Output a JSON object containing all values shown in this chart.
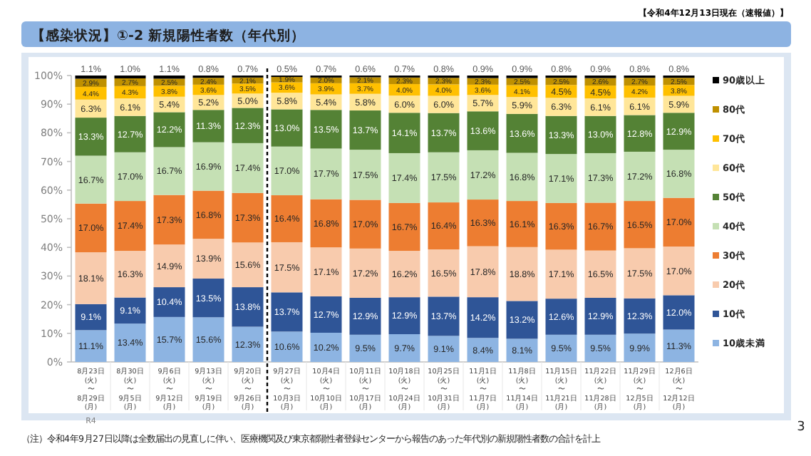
{
  "chart_data": {
    "type": "bar",
    "stacked": true,
    "title": "【感染状況】①-2 新規陽性者数（年代別）",
    "subtitle": "【令和4年12月13日現在（速報値）】",
    "annotations": [
      "（注）令和4年9月27日以降は全数届出の見直しに伴い、医療機関及び東京都陽性者登録センターから報告のあった年代別の新規陽性者数の合計を計上",
      "R4",
      "3"
    ],
    "categories": [
      "8月23日\n(火)\n〜\n8月29日\n(月)",
      "8月30日\n(火)\n〜\n9月5日\n(月)",
      "9月6日\n(火)\n〜\n9月12日\n(月)",
      "9月13日\n(火)\n〜\n9月19日\n(月)",
      "9月20日\n(火)\n〜\n9月26日\n(月)",
      "9月27日\n(火)\n〜\n10月3日\n(月)",
      "10月4日\n(火)\n〜\n10月10日\n(月)",
      "10月11日\n(火)\n〜\n10月17日\n(月)",
      "10月18日\n(火)\n〜\n10月24日\n(月)",
      "10月25日\n(火)\n〜\n10月31日\n(月)",
      "11月1日\n(火)\n〜\n11月7日\n(月)",
      "11月8日\n(火)\n〜\n11月14日\n(月)",
      "11月15日\n(火)\n〜\n11月21日\n(月)",
      "11月22日\n(火)\n〜\n11月28日\n(月)",
      "11月29日\n(火)\n〜\n12月5日\n(月)",
      "12月6日\n(火)\n〜\n12月12日\n(月)"
    ],
    "series": [
      {
        "name": "10歳未満",
        "color": "#8db4e2",
        "values": [
          11.1,
          13.4,
          15.7,
          15.6,
          12.3,
          10.6,
          10.2,
          9.5,
          9.7,
          9.1,
          8.4,
          8.1,
          9.5,
          9.5,
          9.9,
          11.3
        ],
        "value_labels": [
          "11.1%",
          "13.4%",
          "15.7%",
          "15.6%",
          "12.3%",
          "10.6%",
          "10.2%",
          "9.5%",
          "9.7%",
          "9.1%",
          "8.4%",
          "8.1%",
          "9.5%",
          "9.5%",
          "9.9%",
          "11.3%"
        ]
      },
      {
        "name": "10代",
        "color": "#2f5597",
        "values": [
          9.1,
          9.1,
          10.4,
          13.5,
          13.8,
          13.7,
          12.7,
          12.9,
          12.9,
          13.7,
          14.2,
          13.2,
          12.6,
          12.9,
          12.3,
          12.0
        ],
        "value_labels": [
          "9.1%",
          "9.1%",
          "10.4%",
          "13.5%",
          "13.8%",
          "13.7%",
          "12.7%",
          "12.9%",
          "12.9%",
          "13.7%",
          "14.2%",
          "13.2%",
          "12.6%",
          "12.9%",
          "12.3%",
          "12.0%"
        ]
      },
      {
        "name": "20代",
        "color": "#f8cbad",
        "values": [
          18.1,
          16.3,
          14.9,
          13.9,
          15.6,
          17.5,
          17.1,
          17.2,
          16.2,
          16.5,
          17.8,
          18.8,
          17.1,
          16.5,
          17.5,
          17.0
        ],
        "value_labels": [
          "18.1%",
          "16.3%",
          "14.9%",
          "13.9%",
          "15.6%",
          "17.5%",
          "17.1%",
          "17.2%",
          "16.2%",
          "16.5%",
          "17.8%",
          "18.8%",
          "17.1%",
          "16.5%",
          "17.5%",
          "17.0%"
        ]
      },
      {
        "name": "30代",
        "color": "#ed7d31",
        "values": [
          17.0,
          17.4,
          17.3,
          16.8,
          17.3,
          16.4,
          16.8,
          17.0,
          16.7,
          16.4,
          16.3,
          16.1,
          16.3,
          16.7,
          16.5,
          17.0
        ],
        "value_labels": [
          "17.0%",
          "17.4%",
          "17.3%",
          "16.8%",
          "17.3%",
          "16.4%",
          "16.8%",
          "17.0%",
          "16.7%",
          "16.4%",
          "16.3%",
          "16.1%",
          "16.3%",
          "16.7%",
          "16.5%",
          "17.0%"
        ]
      },
      {
        "name": "40代",
        "color": "#c5e0b4",
        "values": [
          16.7,
          17.0,
          16.7,
          16.9,
          17.4,
          17.0,
          17.7,
          17.5,
          17.4,
          17.5,
          17.2,
          16.8,
          17.1,
          17.3,
          17.2,
          16.8
        ],
        "value_labels": [
          "16.7%",
          "17.0%",
          "16.7%",
          "16.9%",
          "17.4%",
          "17.0%",
          "17.7%",
          "17.5%",
          "17.4%",
          "17.5%",
          "17.2%",
          "16.8%",
          "17.1%",
          "17.3%",
          "17.2%",
          "16.8%"
        ]
      },
      {
        "name": "50代",
        "color": "#548235",
        "values": [
          13.3,
          12.7,
          12.2,
          11.3,
          12.3,
          13.0,
          13.5,
          13.7,
          14.1,
          13.7,
          13.6,
          13.6,
          13.3,
          13.0,
          12.8,
          12.9
        ],
        "value_labels": [
          "13.3%",
          "12.7%",
          "12.2%",
          "11.3%",
          "12.3%",
          "13.0%",
          "13.5%",
          "13.7%",
          "14.1%",
          "13.7%",
          "13.6%",
          "13.6%",
          "13.3%",
          "13.0%",
          "12.8%",
          "12.9%"
        ]
      },
      {
        "name": "60代",
        "color": "#ffe699",
        "values": [
          6.3,
          6.1,
          5.4,
          5.2,
          5.0,
          5.8,
          5.4,
          5.8,
          6.0,
          6.0,
          5.7,
          5.9,
          6.3,
          6.1,
          6.1,
          5.9
        ],
        "value_labels": [
          "6.3%",
          "6.1%",
          "5.4%",
          "5.2%",
          "5.0%",
          "5.8%",
          "5.4%",
          "5.8%",
          "6.0%",
          "6.0%",
          "5.7%",
          "5.9%",
          "6.3%",
          "6.1%",
          "6.1%",
          "5.9%"
        ]
      },
      {
        "name": "70代",
        "color": "#ffc000",
        "values": [
          4.4,
          4.3,
          3.8,
          3.6,
          3.5,
          3.6,
          3.9,
          3.7,
          4.0,
          4.0,
          3.6,
          4.1,
          4.5,
          4.5,
          4.2,
          3.8
        ],
        "value_labels": [
          "4.4%",
          "4.3%",
          "3.8%",
          "3.6%",
          "3.5%",
          "3.6%",
          "3.9%",
          "3.7%",
          "4.0%",
          "4.0%",
          "3.6%",
          "4.1%",
          "4.5%",
          "4.5%",
          "4.2%",
          "3.8%"
        ]
      },
      {
        "name": "80代",
        "color": "#bf9000",
        "values": [
          2.9,
          2.7,
          2.5,
          2.4,
          2.1,
          1.9,
          2.0,
          2.1,
          2.3,
          2.3,
          2.3,
          2.5,
          2.5,
          2.6,
          2.7,
          2.5
        ],
        "value_labels": [
          "2.9%",
          "2.7%",
          "2.5%",
          "2.4%",
          "2.1%",
          "1.9%",
          "2.0%",
          "2.1%",
          "2.3%",
          "2.3%",
          "2.3%",
          "2.5%",
          "2.5%",
          "2.6%",
          "2.7%",
          "2.5%"
        ]
      },
      {
        "name": "90歳以上",
        "color": "#000000",
        "values": [
          1.1,
          1.0,
          1.1,
          0.8,
          0.7,
          0.5,
          0.7,
          0.6,
          0.7,
          0.8,
          0.9,
          0.9,
          0.8,
          0.9,
          0.8,
          0.8
        ],
        "value_labels": [
          "1.1%",
          "1.0%",
          "1.1%",
          "0.8%",
          "0.7%",
          "0.5%",
          "0.7%",
          "0.6%",
          "0.7%",
          "0.8%",
          "0.9%",
          "0.9%",
          "0.8%",
          "0.9%",
          "0.8%",
          "0.8%"
        ]
      }
    ],
    "ylim": [
      0,
      100
    ],
    "yticks": [
      {
        "value": 0,
        "label": "0%"
      },
      {
        "value": 10,
        "label": "10%"
      },
      {
        "value": 20,
        "label": "20%"
      },
      {
        "value": 30,
        "label": "30%"
      },
      {
        "value": 40,
        "label": "40%"
      },
      {
        "value": 50,
        "label": "50%"
      },
      {
        "value": 60,
        "label": "60%"
      },
      {
        "value": 70,
        "label": "70%"
      },
      {
        "value": 80,
        "label": "80%"
      },
      {
        "value": 90,
        "label": "90%"
      },
      {
        "value": 100,
        "label": "100%"
      }
    ],
    "legend": "right"
  }
}
